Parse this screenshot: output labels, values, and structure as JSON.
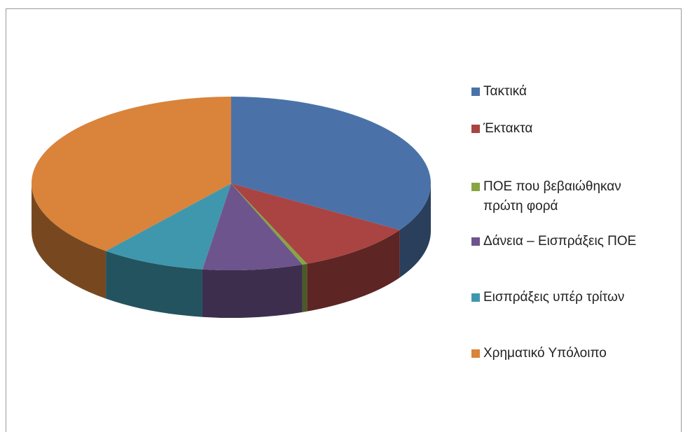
{
  "chart_data": {
    "type": "pie",
    "categories": [
      "Τακτικά",
      "Έκτακτα",
      "ΠΟΕ που βεβαιώθηκαν πρώτη φορά",
      "Δάνεια – Εισπράξεις ΠΟΕ",
      "Εισπράξεις υπέρ τρίτων",
      "Χρηματικό Υπόλοιπο"
    ],
    "values": [
      34,
      9.8,
      0.4,
      8.1,
      8.5,
      39.2
    ],
    "colors": [
      "#4a72a8",
      "#a94442",
      "#86a543",
      "#6e548d",
      "#3f97ad",
      "#d9833b"
    ],
    "legend": "right"
  }
}
